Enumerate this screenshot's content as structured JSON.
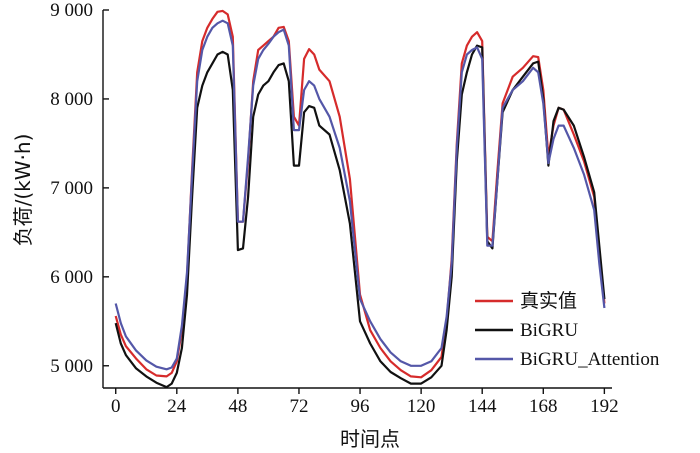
{
  "chart_data": {
    "type": "line",
    "title": "",
    "xlabel": "时间点",
    "ylabel": "负荷/(kW·h)",
    "xlim": [
      -5,
      195
    ],
    "ylim": [
      4750,
      9000
    ],
    "x_ticks": [
      0,
      24,
      48,
      72,
      96,
      120,
      144,
      168,
      192
    ],
    "x_tick_labels": [
      "0",
      "24",
      "48",
      "72",
      "96",
      "120",
      "144",
      "168",
      "192"
    ],
    "y_ticks": [
      5000,
      6000,
      7000,
      8000,
      9000
    ],
    "y_tick_labels": [
      "5 000",
      "6 000",
      "7 000",
      "8 000",
      "9 000"
    ],
    "legend_position": "bottom-right",
    "grid": false,
    "series": [
      {
        "name": "真实值",
        "color": "#d62b2b",
        "x": [
          0,
          2,
          4,
          8,
          12,
          16,
          20,
          22,
          24,
          26,
          28,
          30,
          32,
          34,
          36,
          38,
          40,
          42,
          44,
          46,
          48,
          50,
          52,
          54,
          56,
          58,
          60,
          62,
          64,
          66,
          68,
          70,
          72,
          74,
          76,
          78,
          80,
          84,
          88,
          92,
          96,
          100,
          104,
          108,
          112,
          116,
          120,
          124,
          128,
          130,
          132,
          134,
          136,
          138,
          140,
          142,
          144,
          146,
          148,
          150,
          152,
          156,
          160,
          164,
          166,
          168,
          170,
          172,
          174,
          176,
          180,
          184,
          188,
          190,
          192
        ],
        "values": [
          5560,
          5350,
          5220,
          5080,
          4960,
          4890,
          4880,
          4920,
          5050,
          5400,
          6000,
          7200,
          8300,
          8650,
          8800,
          8900,
          8980,
          8990,
          8950,
          8700,
          6620,
          6620,
          7300,
          8200,
          8550,
          8600,
          8650,
          8700,
          8800,
          8810,
          8650,
          7800,
          7700,
          8450,
          8560,
          8500,
          8330,
          8200,
          7800,
          7100,
          5800,
          5400,
          5200,
          5050,
          4950,
          4880,
          4870,
          4950,
          5100,
          5500,
          6200,
          7500,
          8400,
          8600,
          8700,
          8750,
          8650,
          6450,
          6400,
          7200,
          7950,
          8250,
          8350,
          8480,
          8470,
          8100,
          7350,
          7700,
          7900,
          7880,
          7600,
          7300,
          6900,
          6300,
          5700
        ]
      },
      {
        "name": "BiGRU",
        "color": "#111111",
        "x": [
          0,
          2,
          4,
          8,
          12,
          16,
          20,
          22,
          24,
          26,
          28,
          30,
          32,
          34,
          36,
          38,
          40,
          42,
          44,
          46,
          48,
          50,
          52,
          54,
          56,
          58,
          60,
          62,
          64,
          66,
          68,
          70,
          72,
          74,
          76,
          78,
          80,
          84,
          88,
          92,
          96,
          100,
          104,
          108,
          112,
          116,
          120,
          124,
          128,
          130,
          132,
          134,
          136,
          138,
          140,
          142,
          144,
          146,
          148,
          150,
          152,
          156,
          160,
          164,
          166,
          168,
          170,
          172,
          174,
          176,
          180,
          184,
          188,
          190,
          192
        ],
        "values": [
          5480,
          5250,
          5120,
          4970,
          4880,
          4810,
          4760,
          4800,
          4920,
          5200,
          5800,
          6900,
          7900,
          8150,
          8300,
          8400,
          8500,
          8530,
          8500,
          8100,
          6300,
          6320,
          6900,
          7800,
          8050,
          8150,
          8200,
          8300,
          8380,
          8400,
          8200,
          7250,
          7250,
          7850,
          7920,
          7900,
          7700,
          7600,
          7200,
          6600,
          5500,
          5250,
          5050,
          4930,
          4860,
          4800,
          4800,
          4870,
          5000,
          5400,
          6000,
          7300,
          8050,
          8300,
          8500,
          8600,
          8580,
          6400,
          6320,
          7100,
          7850,
          8100,
          8250,
          8400,
          8420,
          8000,
          7250,
          7750,
          7900,
          7880,
          7700,
          7350,
          6950,
          6350,
          5750
        ]
      },
      {
        "name": "BiGRU_Attention",
        "color": "#5457a8",
        "x": [
          0,
          2,
          4,
          8,
          12,
          16,
          20,
          22,
          24,
          26,
          28,
          30,
          32,
          34,
          36,
          38,
          40,
          42,
          44,
          46,
          48,
          50,
          52,
          54,
          56,
          58,
          60,
          62,
          64,
          66,
          68,
          70,
          72,
          74,
          76,
          78,
          80,
          84,
          88,
          92,
          96,
          100,
          104,
          108,
          112,
          116,
          120,
          124,
          128,
          130,
          132,
          134,
          136,
          138,
          140,
          142,
          144,
          146,
          148,
          150,
          152,
          156,
          160,
          164,
          166,
          168,
          170,
          172,
          174,
          176,
          180,
          184,
          188,
          190,
          192
        ],
        "values": [
          5700,
          5480,
          5330,
          5170,
          5060,
          4990,
          4960,
          4980,
          5080,
          5450,
          6050,
          7150,
          8200,
          8550,
          8700,
          8800,
          8850,
          8880,
          8850,
          8600,
          6620,
          6620,
          7350,
          8150,
          8450,
          8550,
          8620,
          8700,
          8750,
          8780,
          8600,
          7650,
          7650,
          8100,
          8200,
          8150,
          8000,
          7800,
          7450,
          6850,
          5750,
          5500,
          5300,
          5150,
          5050,
          5000,
          5000,
          5050,
          5200,
          5550,
          6150,
          7450,
          8300,
          8500,
          8550,
          8580,
          8450,
          6350,
          6350,
          7100,
          7900,
          8100,
          8200,
          8350,
          8300,
          7950,
          7280,
          7550,
          7700,
          7700,
          7450,
          7150,
          6750,
          6150,
          5650
        ]
      }
    ]
  }
}
